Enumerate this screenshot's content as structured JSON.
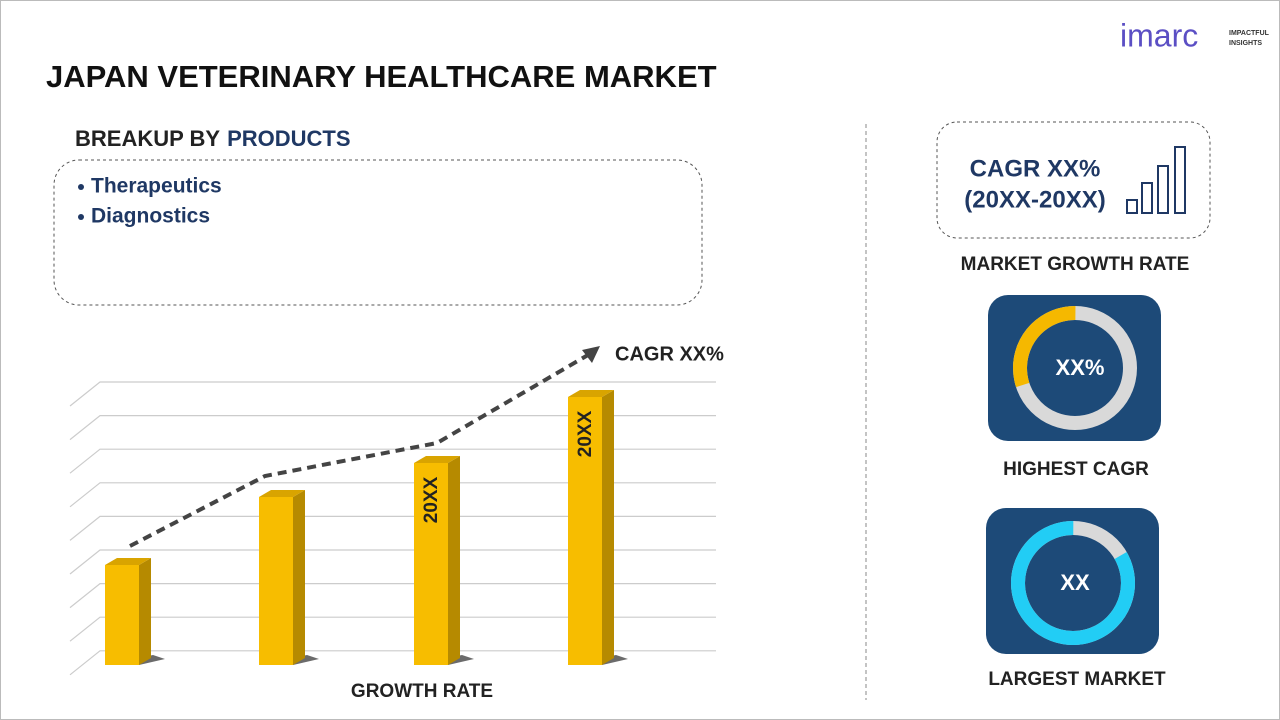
{
  "logo": {
    "name": "imarc",
    "tagline_1": "IMPACTFUL",
    "tagline_2": "INSIGHTS"
  },
  "title": "JAPAN VETERINARY HEALTHCARE MARKET",
  "breakup": {
    "label": "BREAKUP BY",
    "segment": "PRODUCTS",
    "items": [
      "Therapeutics",
      "Diagnostics"
    ]
  },
  "chart": {
    "cagr": "CAGR XX%",
    "bar_labels": [
      "20XX",
      "20XX"
    ],
    "axis_label": "GROWTH RATE"
  },
  "cards": {
    "growth": {
      "line_1": "CAGR XX%",
      "line_2": "(20XX-20XX)",
      "caption": "MARKET GROWTH RATE"
    },
    "highest": {
      "value": "XX%",
      "caption": "HIGHEST CAGR"
    },
    "largest": {
      "value": "XX",
      "caption": "LARGEST MARKET"
    }
  }
}
